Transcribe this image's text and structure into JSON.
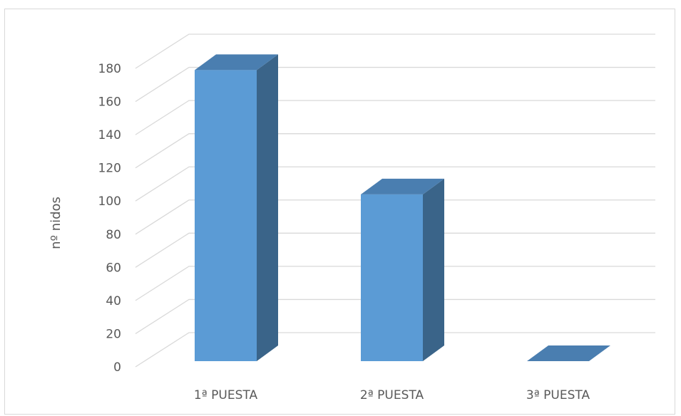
{
  "chart_data": {
    "type": "bar",
    "style": "3d-column",
    "categories": [
      "1ª PUESTA",
      "2ª PUESTA",
      "3ª PUESTA"
    ],
    "values": [
      179,
      104,
      0
    ],
    "ylabel": "nº nidos",
    "xlabel": "",
    "title": "",
    "ylim": [
      0,
      180
    ],
    "yticks": [
      0,
      20,
      40,
      60,
      80,
      100,
      120,
      140,
      160,
      180
    ],
    "grid": true,
    "legend": "none",
    "colors": {
      "bar_front": "#5b9bd5",
      "bar_top": "#4a7eb0",
      "bar_side": "#3a6489",
      "grid": "#d9d9d9",
      "text": "#595959"
    }
  }
}
